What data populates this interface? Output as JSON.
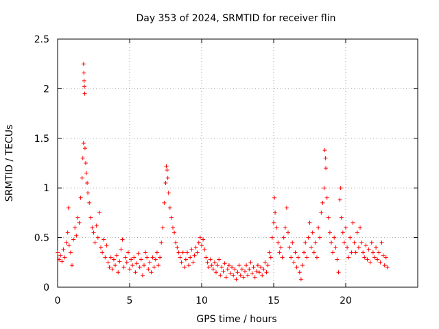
{
  "chart_data": {
    "type": "scatter",
    "title": "Day 353 of 2024, SRMTID for receiver flin",
    "xlabel": "GPS time / hours",
    "ylabel": "SRMTID / TECUs",
    "xlim": [
      0,
      25
    ],
    "ylim": [
      0,
      2.5
    ],
    "xticks": [
      0,
      5,
      10,
      15,
      20
    ],
    "xtick_labels": [
      "0",
      "5",
      "10",
      "15",
      "20"
    ],
    "yticks": [
      0,
      0.5,
      1,
      1.5,
      2,
      2.5
    ],
    "ytick_labels": [
      "0",
      "0.5",
      "1",
      "1.5",
      "2",
      "2.5"
    ],
    "grid": true,
    "marker": "plus",
    "color": "#ff0000",
    "series": [
      {
        "name": "SRMTID",
        "points": [
          [
            0.0,
            0.35
          ],
          [
            0.1,
            0.28
          ],
          [
            0.2,
            0.32
          ],
          [
            0.3,
            0.26
          ],
          [
            0.4,
            0.38
          ],
          [
            0.5,
            0.3
          ],
          [
            0.6,
            0.45
          ],
          [
            0.7,
            0.55
          ],
          [
            0.75,
            0.8
          ],
          [
            0.8,
            0.42
          ],
          [
            0.9,
            0.35
          ],
          [
            1.0,
            0.22
          ],
          [
            1.1,
            0.48
          ],
          [
            1.2,
            0.6
          ],
          [
            1.3,
            0.52
          ],
          [
            1.4,
            0.7
          ],
          [
            1.5,
            0.65
          ],
          [
            1.6,
            0.9
          ],
          [
            1.7,
            1.1
          ],
          [
            1.75,
            1.3
          ],
          [
            1.8,
            1.45
          ],
          [
            1.8,
            2.25
          ],
          [
            1.82,
            2.16
          ],
          [
            1.84,
            2.08
          ],
          [
            1.86,
            2.02
          ],
          [
            1.88,
            1.95
          ],
          [
            1.9,
            1.4
          ],
          [
            1.95,
            1.25
          ],
          [
            2.0,
            1.15
          ],
          [
            2.05,
            1.05
          ],
          [
            2.1,
            0.95
          ],
          [
            2.2,
            0.85
          ],
          [
            2.3,
            0.7
          ],
          [
            2.4,
            0.6
          ],
          [
            2.5,
            0.55
          ],
          [
            2.6,
            0.45
          ],
          [
            2.7,
            0.62
          ],
          [
            2.8,
            0.5
          ],
          [
            2.9,
            0.75
          ],
          [
            3.0,
            0.4
          ],
          [
            3.1,
            0.35
          ],
          [
            3.2,
            0.48
          ],
          [
            3.3,
            0.3
          ],
          [
            3.4,
            0.42
          ],
          [
            3.5,
            0.25
          ],
          [
            3.6,
            0.2
          ],
          [
            3.7,
            0.3
          ],
          [
            3.8,
            0.18
          ],
          [
            3.9,
            0.28
          ],
          [
            4.0,
            0.22
          ],
          [
            4.1,
            0.32
          ],
          [
            4.2,
            0.15
          ],
          [
            4.3,
            0.26
          ],
          [
            4.4,
            0.38
          ],
          [
            4.5,
            0.48
          ],
          [
            4.6,
            0.2
          ],
          [
            4.7,
            0.3
          ],
          [
            4.8,
            0.25
          ],
          [
            4.9,
            0.35
          ],
          [
            5.0,
            0.18
          ],
          [
            5.1,
            0.28
          ],
          [
            5.2,
            0.22
          ],
          [
            5.3,
            0.3
          ],
          [
            5.4,
            0.15
          ],
          [
            5.5,
            0.24
          ],
          [
            5.6,
            0.34
          ],
          [
            5.7,
            0.2
          ],
          [
            5.8,
            0.28
          ],
          [
            5.9,
            0.12
          ],
          [
            6.0,
            0.22
          ],
          [
            6.1,
            0.35
          ],
          [
            6.2,
            0.3
          ],
          [
            6.3,
            0.18
          ],
          [
            6.4,
            0.25
          ],
          [
            6.5,
            0.15
          ],
          [
            6.6,
            0.3
          ],
          [
            6.7,
            0.2
          ],
          [
            6.8,
            0.28
          ],
          [
            6.9,
            0.35
          ],
          [
            7.0,
            0.22
          ],
          [
            7.1,
            0.3
          ],
          [
            7.2,
            0.45
          ],
          [
            7.3,
            0.6
          ],
          [
            7.4,
            0.85
          ],
          [
            7.5,
            1.05
          ],
          [
            7.55,
            1.22
          ],
          [
            7.6,
            1.18
          ],
          [
            7.65,
            1.1
          ],
          [
            7.7,
            0.95
          ],
          [
            7.8,
            0.8
          ],
          [
            7.9,
            0.7
          ],
          [
            8.0,
            0.6
          ],
          [
            8.1,
            0.55
          ],
          [
            8.2,
            0.45
          ],
          [
            8.3,
            0.4
          ],
          [
            8.4,
            0.35
          ],
          [
            8.5,
            0.3
          ],
          [
            8.6,
            0.25
          ],
          [
            8.7,
            0.35
          ],
          [
            8.8,
            0.2
          ],
          [
            8.9,
            0.28
          ],
          [
            9.0,
            0.35
          ],
          [
            9.1,
            0.22
          ],
          [
            9.2,
            0.3
          ],
          [
            9.3,
            0.38
          ],
          [
            9.4,
            0.25
          ],
          [
            9.5,
            0.32
          ],
          [
            9.6,
            0.4
          ],
          [
            9.7,
            0.35
          ],
          [
            9.8,
            0.45
          ],
          [
            9.9,
            0.5
          ],
          [
            10.0,
            0.42
          ],
          [
            10.1,
            0.48
          ],
          [
            10.2,
            0.38
          ],
          [
            10.3,
            0.3
          ],
          [
            10.4,
            0.25
          ],
          [
            10.5,
            0.2
          ],
          [
            10.6,
            0.28
          ],
          [
            10.7,
            0.22
          ],
          [
            10.8,
            0.18
          ],
          [
            10.9,
            0.25
          ],
          [
            11.0,
            0.15
          ],
          [
            11.1,
            0.22
          ],
          [
            11.2,
            0.28
          ],
          [
            11.3,
            0.12
          ],
          [
            11.4,
            0.2
          ],
          [
            11.5,
            0.16
          ],
          [
            11.6,
            0.24
          ],
          [
            11.7,
            0.1
          ],
          [
            11.8,
            0.18
          ],
          [
            11.9,
            0.22
          ],
          [
            12.0,
            0.14
          ],
          [
            12.1,
            0.2
          ],
          [
            12.2,
            0.12
          ],
          [
            12.3,
            0.18
          ],
          [
            12.4,
            0.08
          ],
          [
            12.5,
            0.15
          ],
          [
            12.6,
            0.22
          ],
          [
            12.7,
            0.12
          ],
          [
            12.8,
            0.18
          ],
          [
            12.9,
            0.1
          ],
          [
            13.0,
            0.16
          ],
          [
            13.1,
            0.22
          ],
          [
            13.2,
            0.12
          ],
          [
            13.3,
            0.18
          ],
          [
            13.4,
            0.25
          ],
          [
            13.5,
            0.14
          ],
          [
            13.6,
            0.2
          ],
          [
            13.7,
            0.1
          ],
          [
            13.8,
            0.16
          ],
          [
            13.9,
            0.22
          ],
          [
            14.0,
            0.15
          ],
          [
            14.1,
            0.2
          ],
          [
            14.2,
            0.12
          ],
          [
            14.3,
            0.18
          ],
          [
            14.4,
            0.25
          ],
          [
            14.5,
            0.15
          ],
          [
            14.6,
            0.22
          ],
          [
            14.7,
            0.35
          ],
          [
            14.8,
            0.3
          ],
          [
            14.9,
            0.5
          ],
          [
            15.0,
            0.65
          ],
          [
            15.05,
            0.9
          ],
          [
            15.1,
            0.75
          ],
          [
            15.2,
            0.6
          ],
          [
            15.3,
            0.45
          ],
          [
            15.4,
            0.35
          ],
          [
            15.5,
            0.4
          ],
          [
            15.6,
            0.3
          ],
          [
            15.7,
            0.5
          ],
          [
            15.8,
            0.6
          ],
          [
            15.9,
            0.8
          ],
          [
            16.0,
            0.55
          ],
          [
            16.1,
            0.4
          ],
          [
            16.2,
            0.3
          ],
          [
            16.3,
            0.45
          ],
          [
            16.4,
            0.25
          ],
          [
            16.5,
            0.35
          ],
          [
            16.6,
            0.2
          ],
          [
            16.7,
            0.3
          ],
          [
            16.8,
            0.15
          ],
          [
            16.9,
            0.08
          ],
          [
            17.0,
            0.22
          ],
          [
            17.1,
            0.35
          ],
          [
            17.2,
            0.45
          ],
          [
            17.3,
            0.3
          ],
          [
            17.4,
            0.5
          ],
          [
            17.5,
            0.65
          ],
          [
            17.6,
            0.4
          ],
          [
            17.7,
            0.55
          ],
          [
            17.8,
            0.35
          ],
          [
            17.9,
            0.45
          ],
          [
            18.0,
            0.3
          ],
          [
            18.1,
            0.6
          ],
          [
            18.2,
            0.5
          ],
          [
            18.3,
            0.75
          ],
          [
            18.4,
            0.85
          ],
          [
            18.5,
            1.0
          ],
          [
            18.55,
            1.38
          ],
          [
            18.6,
            1.3
          ],
          [
            18.62,
            1.2
          ],
          [
            18.7,
            0.9
          ],
          [
            18.8,
            0.7
          ],
          [
            18.9,
            0.55
          ],
          [
            19.0,
            0.45
          ],
          [
            19.1,
            0.35
          ],
          [
            19.2,
            0.5
          ],
          [
            19.3,
            0.4
          ],
          [
            19.4,
            0.28
          ],
          [
            19.5,
            0.15
          ],
          [
            19.6,
            0.88
          ],
          [
            19.65,
            1.0
          ],
          [
            19.7,
            0.7
          ],
          [
            19.8,
            0.55
          ],
          [
            19.9,
            0.45
          ],
          [
            20.0,
            0.6
          ],
          [
            20.1,
            0.4
          ],
          [
            20.2,
            0.3
          ],
          [
            20.3,
            0.5
          ],
          [
            20.4,
            0.35
          ],
          [
            20.5,
            0.65
          ],
          [
            20.6,
            0.45
          ],
          [
            20.7,
            0.35
          ],
          [
            20.8,
            0.55
          ],
          [
            20.9,
            0.4
          ],
          [
            21.0,
            0.6
          ],
          [
            21.1,
            0.45
          ],
          [
            21.2,
            0.35
          ],
          [
            21.3,
            0.3
          ],
          [
            21.4,
            0.42
          ],
          [
            21.5,
            0.28
          ],
          [
            21.6,
            0.38
          ],
          [
            21.7,
            0.25
          ],
          [
            21.8,
            0.45
          ],
          [
            21.9,
            0.35
          ],
          [
            22.0,
            0.3
          ],
          [
            22.1,
            0.4
          ],
          [
            22.2,
            0.28
          ],
          [
            22.3,
            0.35
          ],
          [
            22.4,
            0.25
          ],
          [
            22.5,
            0.45
          ],
          [
            22.6,
            0.32
          ],
          [
            22.7,
            0.22
          ],
          [
            22.8,
            0.3
          ],
          [
            22.9,
            0.2
          ]
        ]
      }
    ]
  }
}
